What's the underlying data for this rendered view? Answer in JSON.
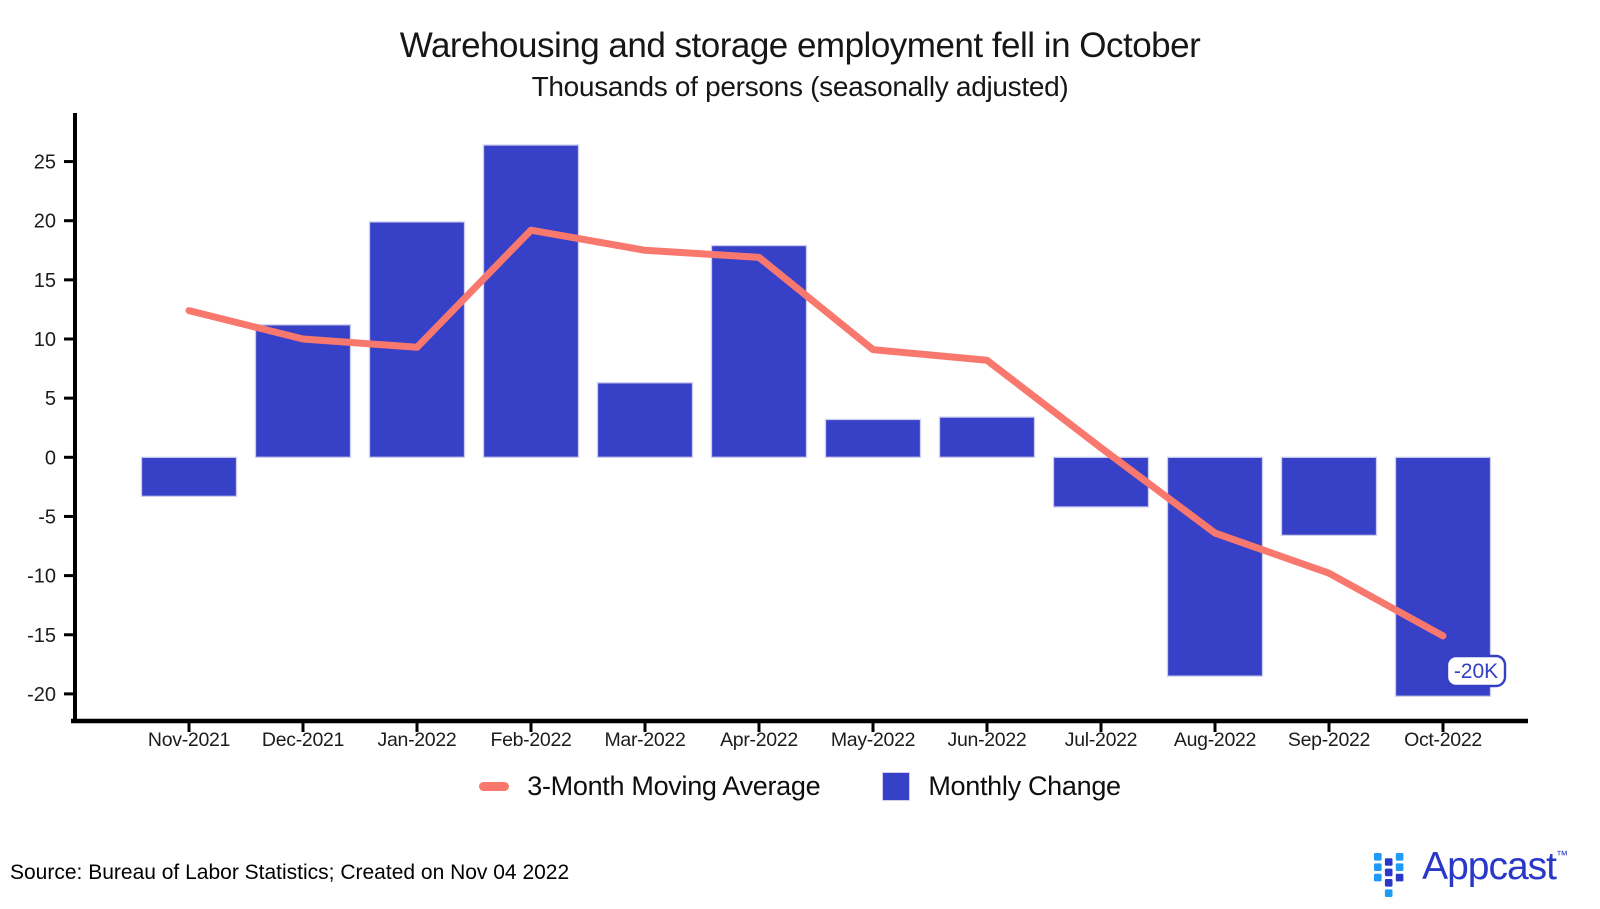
{
  "title": "Warehousing and storage employment fell in October",
  "subtitle": "Thousands of persons (seasonally adjusted)",
  "source_note": "Source: Bureau of Labor Statistics; Created on Nov 04 2022",
  "legend": {
    "line_label": "3-Month Moving Average",
    "bar_label": "Monthly Change"
  },
  "logo": {
    "wordmark": "Appcast",
    "trademark": "™"
  },
  "colors": {
    "bar": "#3641c8",
    "bar_outline": "#cfcfef",
    "line": "#f9786e",
    "annotation": "#3340c4",
    "axis": "#000000",
    "text": "#1c1c1c",
    "logo_light": "#1f9bf7",
    "logo_dark": "#2938c8"
  },
  "chart_data": {
    "type": "bar+line",
    "title": "Warehousing and storage employment fell in October",
    "subtitle": "Thousands of persons (seasonally adjusted)",
    "xlabel": "",
    "ylabel": "",
    "categories": [
      "Nov-2021",
      "Dec-2021",
      "Jan-2022",
      "Feb-2022",
      "Mar-2022",
      "Apr-2022",
      "May-2022",
      "Jun-2022",
      "Jul-2022",
      "Aug-2022",
      "Sep-2022",
      "Oct-2022"
    ],
    "series": [
      {
        "name": "Monthly Change",
        "type": "bar",
        "values": [
          -3.3,
          11.2,
          19.9,
          26.4,
          6.3,
          17.9,
          3.2,
          3.4,
          -4.2,
          -18.5,
          -6.6,
          -20.2
        ]
      },
      {
        "name": "3-Month Moving Average",
        "type": "line",
        "values": [
          12.4,
          10.0,
          9.3,
          19.2,
          17.5,
          16.9,
          9.1,
          8.2,
          0.8,
          -6.4,
          -9.8,
          -15.1
        ]
      }
    ],
    "yticks": [
      25,
      20,
      15,
      10,
      5,
      0,
      -5,
      -10,
      -15,
      -20
    ],
    "ylim": [
      -22.5,
      29
    ],
    "grid": false,
    "legend_position": "bottom",
    "annotation": {
      "category": "Oct-2022",
      "value_label": "-20K"
    }
  }
}
